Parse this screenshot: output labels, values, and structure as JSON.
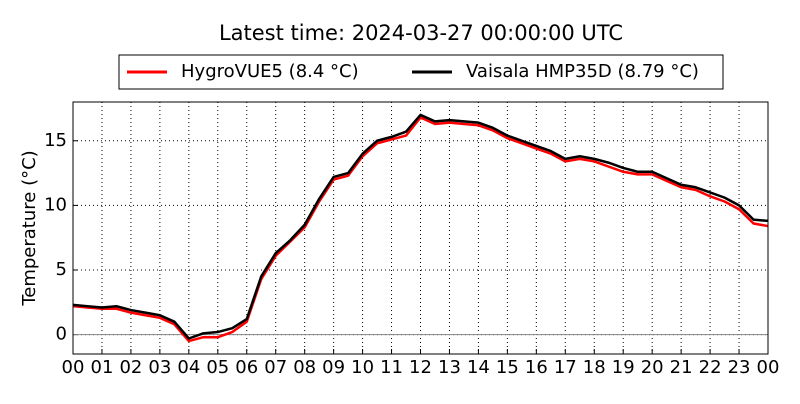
{
  "chart_data": {
    "type": "line",
    "title": "Latest time: 2024-03-27 00:00:00 UTC",
    "y_label": "Temperature (°C)",
    "x": [
      0,
      0.5,
      1,
      1.5,
      2,
      2.5,
      3,
      3.5,
      4,
      4.5,
      5,
      5.5,
      6,
      6.5,
      7,
      7.5,
      8,
      8.5,
      9,
      9.5,
      10,
      10.5,
      11,
      11.5,
      12,
      12.5,
      13,
      13.5,
      14,
      14.5,
      15,
      15.5,
      16,
      16.5,
      17,
      17.5,
      18,
      18.5,
      19,
      19.5,
      20,
      20.5,
      21,
      21.5,
      22,
      22.5,
      23,
      23.5,
      24
    ],
    "series": [
      {
        "name": "HygroVUE5 (8.4 °C)",
        "color": "#ff0000",
        "values": [
          2.2,
          2.1,
          2.0,
          2.0,
          1.7,
          1.5,
          1.3,
          0.8,
          -0.5,
          -0.2,
          -0.2,
          0.2,
          1.0,
          4.3,
          6.1,
          7.2,
          8.3,
          10.3,
          12.0,
          12.3,
          13.8,
          14.8,
          15.1,
          15.4,
          16.8,
          16.3,
          16.4,
          16.3,
          16.2,
          15.8,
          15.2,
          14.8,
          14.4,
          14.0,
          13.4,
          13.6,
          13.4,
          13.0,
          12.6,
          12.4,
          12.4,
          11.9,
          11.4,
          11.2,
          10.7,
          10.3,
          9.7,
          8.6,
          8.4
        ]
      },
      {
        "name": "Vaisala HMP35D (8.79 °C)",
        "color": "#000000",
        "values": [
          2.3,
          2.2,
          2.1,
          2.2,
          1.9,
          1.7,
          1.5,
          1.0,
          -0.3,
          0.1,
          0.2,
          0.5,
          1.2,
          4.5,
          6.3,
          7.3,
          8.5,
          10.5,
          12.2,
          12.5,
          14.0,
          15.0,
          15.3,
          15.7,
          17.0,
          16.5,
          16.6,
          16.5,
          16.4,
          16.0,
          15.4,
          15.0,
          14.6,
          14.2,
          13.6,
          13.8,
          13.6,
          13.3,
          12.9,
          12.6,
          12.6,
          12.1,
          11.6,
          11.4,
          11.0,
          10.6,
          10.0,
          8.9,
          8.8
        ]
      }
    ],
    "xlim": [
      0,
      24
    ],
    "xticks": [
      {
        "value": 0,
        "label": "00"
      },
      {
        "value": 1,
        "label": "01"
      },
      {
        "value": 2,
        "label": "02"
      },
      {
        "value": 3,
        "label": "03"
      },
      {
        "value": 4,
        "label": "04"
      },
      {
        "value": 5,
        "label": "05"
      },
      {
        "value": 6,
        "label": "06"
      },
      {
        "value": 7,
        "label": "07"
      },
      {
        "value": 8,
        "label": "08"
      },
      {
        "value": 9,
        "label": "09"
      },
      {
        "value": 10,
        "label": "10"
      },
      {
        "value": 11,
        "label": "11"
      },
      {
        "value": 12,
        "label": "12"
      },
      {
        "value": 13,
        "label": "13"
      },
      {
        "value": 14,
        "label": "14"
      },
      {
        "value": 15,
        "label": "15"
      },
      {
        "value": 16,
        "label": "16"
      },
      {
        "value": 17,
        "label": "17"
      },
      {
        "value": 18,
        "label": "18"
      },
      {
        "value": 19,
        "label": "19"
      },
      {
        "value": 20,
        "label": "20"
      },
      {
        "value": 21,
        "label": "21"
      },
      {
        "value": 22,
        "label": "22"
      },
      {
        "value": 23,
        "label": "23"
      },
      {
        "value": 24,
        "label": "00"
      }
    ],
    "ylim": [
      -1.5,
      18
    ],
    "yticks": [
      0,
      5,
      10,
      15
    ],
    "grid": true,
    "legend": "top"
  }
}
